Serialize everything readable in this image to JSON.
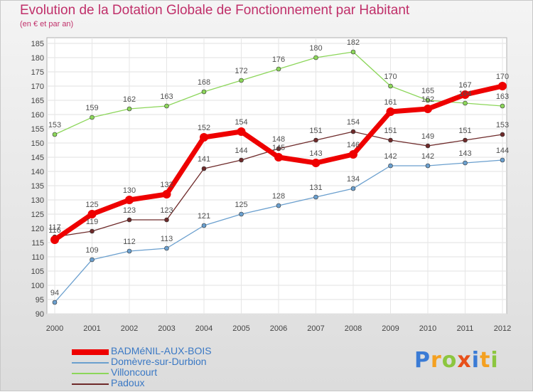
{
  "chart_data": {
    "type": "line",
    "title": "Evolution de la Dotation Globale de Fonctionnement par Habitant",
    "subtitle": "(en € et par an)",
    "xlabel": "",
    "ylabel": "",
    "categories": [
      "2000",
      "2001",
      "2002",
      "2003",
      "2004",
      "2005",
      "2006",
      "2007",
      "2008",
      "2009",
      "2010",
      "2011",
      "2012"
    ],
    "ylim": [
      90,
      185
    ],
    "yticks": [
      90,
      95,
      100,
      105,
      110,
      115,
      120,
      125,
      130,
      135,
      140,
      145,
      150,
      155,
      160,
      165,
      170,
      175,
      180,
      185
    ],
    "grid": true,
    "legend_position": "bottom-left",
    "series": [
      {
        "name": "BADMéNIL-AUX-BOIS",
        "color": "#ee0000",
        "values": [
          116,
          125,
          130,
          132,
          152,
          154,
          145,
          143,
          146,
          161,
          162,
          167,
          170
        ]
      },
      {
        "name": "Domèvre-sur-Durbion",
        "color": "#6a9fce",
        "values": [
          94,
          109,
          112,
          113,
          121,
          125,
          128,
          131,
          134,
          142,
          142,
          143,
          144
        ]
      },
      {
        "name": "Villoncourt",
        "color": "#8cd65a",
        "values": [
          153,
          159,
          162,
          163,
          168,
          172,
          176,
          180,
          182,
          170,
          165,
          164,
          163
        ]
      },
      {
        "name": "Padoux",
        "color": "#6e2a2a",
        "values": [
          117,
          119,
          123,
          123,
          141,
          144,
          148,
          151,
          154,
          151,
          149,
          151,
          153
        ]
      }
    ]
  },
  "brand": {
    "letters": [
      "P",
      "r",
      "o",
      "x",
      "i",
      "t",
      "i"
    ],
    "colors": [
      "#3a7bd5",
      "#f4a020",
      "#8cc63f",
      "#e8501a",
      "#3a7bd5",
      "#f4a020",
      "#8cc63f"
    ]
  }
}
